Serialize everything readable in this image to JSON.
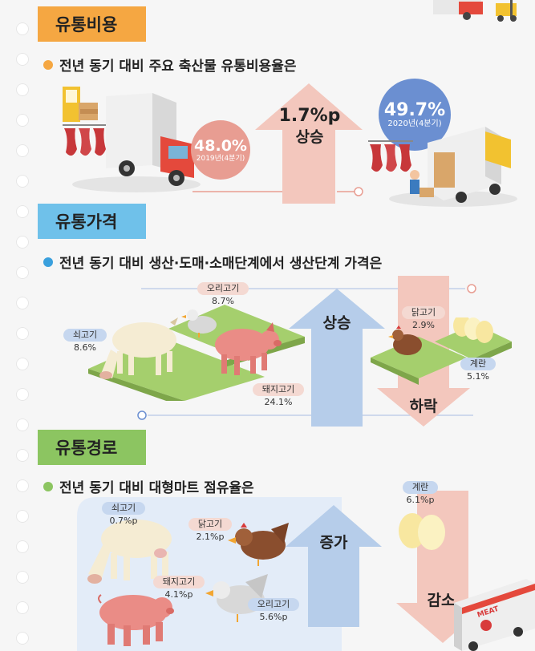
{
  "section1": {
    "title": "유통비용",
    "lead": "전년 동기 대비 주요 축산물 유통비용율은",
    "left_value": "48.0%",
    "left_period": "2019년(4분기)",
    "right_value": "49.7%",
    "right_period": "2020년(4분기)",
    "change_value": "1.7%p",
    "change_word": "상승"
  },
  "section2": {
    "title": "유통가격",
    "lead": "전년 동기 대비 생산·도매·소매단계에서 생산단계 가격은",
    "items": [
      {
        "name": "오리고기",
        "value": "8.7%"
      },
      {
        "name": "쇠고기",
        "value": "8.6%"
      },
      {
        "name": "돼지고기",
        "value": "24.1%"
      },
      {
        "name": "닭고기",
        "value": "2.9%"
      },
      {
        "name": "계란",
        "value": "5.1%"
      }
    ],
    "up_word": "상승",
    "down_word": "하락"
  },
  "section3": {
    "title": "유통경로",
    "lead": "전년 동기 대비 대형마트 점유율은",
    "items": [
      {
        "name": "쇠고기",
        "value": "0.7%p"
      },
      {
        "name": "닭고기",
        "value": "2.1%p"
      },
      {
        "name": "돼지고기",
        "value": "4.1%p"
      },
      {
        "name": "오리고기",
        "value": "5.6%p"
      },
      {
        "name": "계란",
        "value": "6.1%p"
      }
    ],
    "up_word": "증가",
    "down_word": "감소",
    "truck_text": "MEAT"
  },
  "colors": {
    "orange": "#f5a742",
    "blue": "#6fc1ea",
    "green": "#8cc561",
    "pink": "#e89d92",
    "arrow_pink": "#f3c7bd",
    "arrow_blue": "#b6cdea",
    "grass": "#a5cf6d"
  }
}
